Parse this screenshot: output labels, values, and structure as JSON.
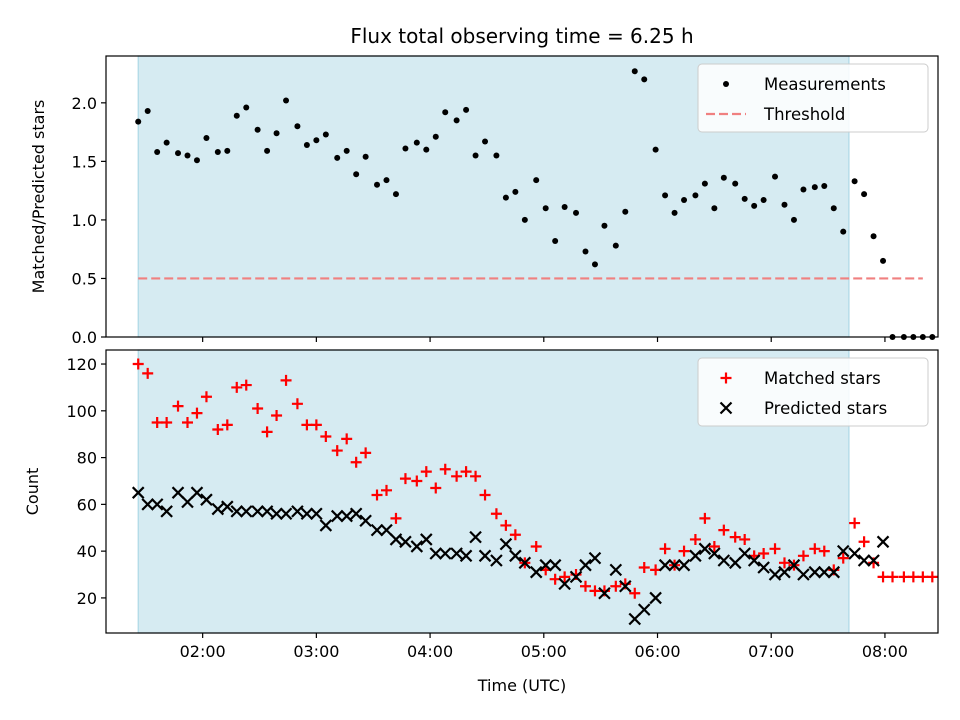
{
  "title": "Flux total observing time = 6.25 h",
  "xlabel": "Time (UTC)",
  "x_ticks": [
    "02:00",
    "03:00",
    "04:00",
    "05:00",
    "06:00",
    "07:00",
    "08:00"
  ],
  "colors": {
    "shade": "#add8e6",
    "matched": "#ff0000",
    "predicted": "#000000",
    "threshold": "#f08080",
    "measurements": "#000000"
  },
  "chart_data": [
    {
      "type": "scatter",
      "ylabel": "Matched/Predicted stars",
      "xlim": [
        "01:09",
        "08:28"
      ],
      "ylim": [
        0,
        2.4
      ],
      "y_ticks": [
        "0.0",
        "0.5",
        "1.0",
        "1.5",
        "2.0"
      ],
      "observing_window": [
        "01:26",
        "07:41"
      ],
      "threshold": 0.5,
      "legend": {
        "placement": "top-right",
        "entries": [
          "Measurements",
          "Threshold"
        ]
      },
      "series": [
        {
          "name": "Measurements",
          "points": [
            [
              "01:26",
              1.84
            ],
            [
              "01:31",
              1.93
            ],
            [
              "01:36",
              1.58
            ],
            [
              "01:41",
              1.66
            ],
            [
              "01:47",
              1.57
            ],
            [
              "01:52",
              1.55
            ],
            [
              "01:57",
              1.51
            ],
            [
              "02:02",
              1.7
            ],
            [
              "02:08",
              1.58
            ],
            [
              "02:13",
              1.59
            ],
            [
              "02:18",
              1.89
            ],
            [
              "02:23",
              1.96
            ],
            [
              "02:29",
              1.77
            ],
            [
              "02:34",
              1.59
            ],
            [
              "02:39",
              1.74
            ],
            [
              "02:44",
              2.02
            ],
            [
              "02:50",
              1.8
            ],
            [
              "02:55",
              1.64
            ],
            [
              "03:00",
              1.68
            ],
            [
              "03:05",
              1.73
            ],
            [
              "03:11",
              1.53
            ],
            [
              "03:16",
              1.59
            ],
            [
              "03:21",
              1.39
            ],
            [
              "03:26",
              1.54
            ],
            [
              "03:32",
              1.3
            ],
            [
              "03:37",
              1.34
            ],
            [
              "03:42",
              1.22
            ],
            [
              "03:47",
              1.61
            ],
            [
              "03:53",
              1.66
            ],
            [
              "03:58",
              1.6
            ],
            [
              "04:03",
              1.71
            ],
            [
              "04:08",
              1.92
            ],
            [
              "04:14",
              1.85
            ],
            [
              "04:19",
              1.94
            ],
            [
              "04:24",
              1.55
            ],
            [
              "04:29",
              1.67
            ],
            [
              "04:35",
              1.55
            ],
            [
              "04:40",
              1.19
            ],
            [
              "04:45",
              1.24
            ],
            [
              "04:50",
              1.0
            ],
            [
              "04:56",
              1.34
            ],
            [
              "05:01",
              1.1
            ],
            [
              "05:06",
              0.82
            ],
            [
              "05:11",
              1.11
            ],
            [
              "05:17",
              1.06
            ],
            [
              "05:22",
              0.73
            ],
            [
              "05:27",
              0.62
            ],
            [
              "05:32",
              0.95
            ],
            [
              "05:38",
              0.78
            ],
            [
              "05:43",
              1.07
            ],
            [
              "05:48",
              2.27
            ],
            [
              "05:53",
              2.2
            ],
            [
              "05:59",
              1.6
            ],
            [
              "06:04",
              1.21
            ],
            [
              "06:09",
              1.06
            ],
            [
              "06:14",
              1.17
            ],
            [
              "06:20",
              1.21
            ],
            [
              "06:25",
              1.31
            ],
            [
              "06:30",
              1.1
            ],
            [
              "06:35",
              1.36
            ],
            [
              "06:41",
              1.31
            ],
            [
              "06:46",
              1.18
            ],
            [
              "06:51",
              1.12
            ],
            [
              "06:56",
              1.17
            ],
            [
              "07:02",
              1.37
            ],
            [
              "07:07",
              1.13
            ],
            [
              "07:12",
              1.0
            ],
            [
              "07:17",
              1.26
            ],
            [
              "07:23",
              1.28
            ],
            [
              "07:28",
              1.29
            ],
            [
              "07:33",
              1.1
            ],
            [
              "07:38",
              0.9
            ],
            [
              "07:44",
              1.33
            ],
            [
              "07:49",
              1.22
            ],
            [
              "07:54",
              0.86
            ],
            [
              "07:59",
              0.65
            ],
            [
              "08:04",
              0.0
            ],
            [
              "08:10",
              0.0
            ],
            [
              "08:15",
              0.0
            ],
            [
              "08:20",
              0.0
            ],
            [
              "08:25",
              0.0
            ]
          ]
        },
        {
          "name": "Threshold",
          "x": [
            "01:26",
            "08:20"
          ],
          "y": [
            0.5,
            0.5
          ]
        }
      ]
    },
    {
      "type": "scatter",
      "ylabel": "Count",
      "xlim": [
        "01:09",
        "08:28"
      ],
      "ylim": [
        5,
        126
      ],
      "y_ticks": [
        "20",
        "40",
        "60",
        "80",
        "100",
        "120"
      ],
      "observing_window": [
        "01:26",
        "07:41"
      ],
      "legend": {
        "placement": "top-right",
        "entries": [
          "Matched stars",
          "Predicted stars"
        ]
      },
      "series": [
        {
          "name": "Matched stars",
          "points": [
            [
              "01:26",
              120
            ],
            [
              "01:31",
              116
            ],
            [
              "01:36",
              95
            ],
            [
              "01:41",
              95
            ],
            [
              "01:47",
              102
            ],
            [
              "01:52",
              95
            ],
            [
              "01:57",
              99
            ],
            [
              "02:02",
              106
            ],
            [
              "02:08",
              92
            ],
            [
              "02:13",
              94
            ],
            [
              "02:18",
              110
            ],
            [
              "02:23",
              111
            ],
            [
              "02:29",
              101
            ],
            [
              "02:34",
              91
            ],
            [
              "02:39",
              98
            ],
            [
              "02:44",
              113
            ],
            [
              "02:50",
              103
            ],
            [
              "02:55",
              94
            ],
            [
              "03:00",
              94
            ],
            [
              "03:05",
              89
            ],
            [
              "03:11",
              83
            ],
            [
              "03:16",
              88
            ],
            [
              "03:21",
              78
            ],
            [
              "03:26",
              82
            ],
            [
              "03:32",
              64
            ],
            [
              "03:37",
              66
            ],
            [
              "03:42",
              54
            ],
            [
              "03:47",
              71
            ],
            [
              "03:53",
              70
            ],
            [
              "03:58",
              74
            ],
            [
              "04:03",
              67
            ],
            [
              "04:08",
              75
            ],
            [
              "04:14",
              72
            ],
            [
              "04:19",
              74
            ],
            [
              "04:24",
              72
            ],
            [
              "04:29",
              64
            ],
            [
              "04:35",
              56
            ],
            [
              "04:40",
              51
            ],
            [
              "04:45",
              47
            ],
            [
              "04:50",
              35
            ],
            [
              "04:56",
              42
            ],
            [
              "05:01",
              32
            ],
            [
              "05:06",
              28
            ],
            [
              "05:11",
              29
            ],
            [
              "05:17",
              30
            ],
            [
              "05:22",
              25
            ],
            [
              "05:27",
              23
            ],
            [
              "05:32",
              23
            ],
            [
              "05:38",
              25
            ],
            [
              "05:43",
              26
            ],
            [
              "05:48",
              22
            ],
            [
              "05:53",
              33
            ],
            [
              "05:59",
              32
            ],
            [
              "06:04",
              41
            ],
            [
              "06:09",
              34
            ],
            [
              "06:14",
              40
            ],
            [
              "06:20",
              45
            ],
            [
              "06:25",
              54
            ],
            [
              "06:30",
              42
            ],
            [
              "06:35",
              49
            ],
            [
              "06:41",
              46
            ],
            [
              "06:46",
              45
            ],
            [
              "06:51",
              38
            ],
            [
              "06:56",
              39
            ],
            [
              "07:02",
              41
            ],
            [
              "07:07",
              35
            ],
            [
              "07:12",
              34
            ],
            [
              "07:17",
              38
            ],
            [
              "07:23",
              41
            ],
            [
              "07:28",
              40
            ],
            [
              "07:33",
              32
            ],
            [
              "07:38",
              37
            ],
            [
              "07:44",
              52
            ],
            [
              "07:49",
              44
            ],
            [
              "07:54",
              35
            ],
            [
              "07:59",
              29
            ],
            [
              "08:04",
              29
            ],
            [
              "08:10",
              29
            ],
            [
              "08:15",
              29
            ],
            [
              "08:20",
              29
            ],
            [
              "08:25",
              29
            ]
          ]
        },
        {
          "name": "Predicted stars",
          "points": [
            [
              "01:26",
              65
            ],
            [
              "01:31",
              60
            ],
            [
              "01:36",
              60
            ],
            [
              "01:41",
              57
            ],
            [
              "01:47",
              65
            ],
            [
              "01:52",
              61
            ],
            [
              "01:57",
              65
            ],
            [
              "02:02",
              62
            ],
            [
              "02:08",
              58
            ],
            [
              "02:13",
              59
            ],
            [
              "02:18",
              57
            ],
            [
              "02:23",
              57
            ],
            [
              "02:29",
              57
            ],
            [
              "02:34",
              57
            ],
            [
              "02:39",
              56
            ],
            [
              "02:44",
              56
            ],
            [
              "02:50",
              57
            ],
            [
              "02:55",
              56
            ],
            [
              "03:00",
              56
            ],
            [
              "03:05",
              51
            ],
            [
              "03:11",
              55
            ],
            [
              "03:16",
              55
            ],
            [
              "03:21",
              56
            ],
            [
              "03:26",
              53
            ],
            [
              "03:32",
              49
            ],
            [
              "03:37",
              49
            ],
            [
              "03:42",
              45
            ],
            [
              "03:47",
              44
            ],
            [
              "03:53",
              42
            ],
            [
              "03:58",
              45
            ],
            [
              "04:03",
              39
            ],
            [
              "04:08",
              39
            ],
            [
              "04:14",
              39
            ],
            [
              "04:19",
              38
            ],
            [
              "04:24",
              46
            ],
            [
              "04:29",
              38
            ],
            [
              "04:35",
              36
            ],
            [
              "04:40",
              43
            ],
            [
              "04:45",
              38
            ],
            [
              "04:50",
              35
            ],
            [
              "04:56",
              31
            ],
            [
              "05:01",
              34
            ],
            [
              "05:06",
              34
            ],
            [
              "05:11",
              26
            ],
            [
              "05:17",
              29
            ],
            [
              "05:22",
              34
            ],
            [
              "05:27",
              37
            ],
            [
              "05:32",
              22
            ],
            [
              "05:38",
              32
            ],
            [
              "05:43",
              25
            ],
            [
              "05:48",
              11
            ],
            [
              "05:53",
              15
            ],
            [
              "05:59",
              20
            ],
            [
              "06:04",
              34
            ],
            [
              "06:09",
              34
            ],
            [
              "06:14",
              34
            ],
            [
              "06:20",
              38
            ],
            [
              "06:25",
              41
            ],
            [
              "06:30",
              39
            ],
            [
              "06:35",
              36
            ],
            [
              "06:41",
              35
            ],
            [
              "06:46",
              39
            ],
            [
              "06:51",
              36
            ],
            [
              "06:56",
              33
            ],
            [
              "07:02",
              30
            ],
            [
              "07:07",
              31
            ],
            [
              "07:12",
              34
            ],
            [
              "07:17",
              30
            ],
            [
              "07:23",
              31
            ],
            [
              "07:28",
              31
            ],
            [
              "07:33",
              31
            ],
            [
              "07:38",
              40
            ],
            [
              "07:44",
              39
            ],
            [
              "07:49",
              36
            ],
            [
              "07:54",
              36
            ],
            [
              "07:59",
              44
            ]
          ]
        }
      ]
    }
  ]
}
